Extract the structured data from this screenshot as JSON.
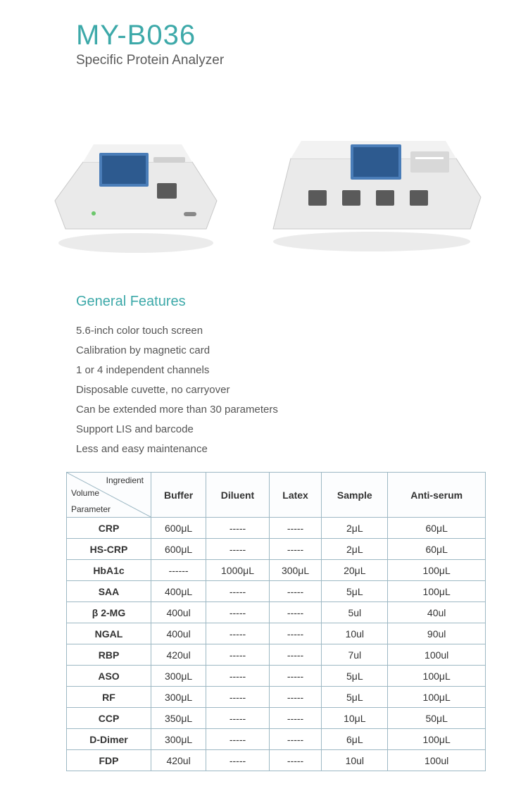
{
  "header": {
    "model": "MY-B036",
    "subtitle": "Specific Protein Analyzer"
  },
  "colors": {
    "accent": "#3da9a9",
    "text": "#4a4a4a",
    "border": "#9db8c4"
  },
  "section_title": "General Features",
  "features": [
    "5.6-inch color touch screen",
    "Calibration by magnetic card",
    "1 or 4 independent channels",
    "Disposable cuvette, no carryover",
    "Can be extended more than 30 parameters",
    "Support LIS and barcode",
    "Less and easy maintenance"
  ],
  "table": {
    "corner": {
      "ingredient": "Ingredient",
      "volume": "Volume",
      "parameter": "Parameter"
    },
    "columns": [
      "Buffer",
      "Diluent",
      "Latex",
      "Sample",
      "Anti-serum"
    ],
    "rows": [
      {
        "param": "CRP",
        "vals": [
          "600μL",
          "-----",
          "-----",
          "2μL",
          "60μL"
        ]
      },
      {
        "param": "HS-CRP",
        "vals": [
          "600μL",
          "-----",
          "-----",
          "2μL",
          "60μL"
        ]
      },
      {
        "param": "HbA1c",
        "vals": [
          "------",
          "1000μL",
          "300μL",
          "20μL",
          "100μL"
        ]
      },
      {
        "param": "SAA",
        "vals": [
          "400μL",
          "-----",
          "-----",
          "5μL",
          "100μL"
        ]
      },
      {
        "param": "β 2-MG",
        "vals": [
          "400ul",
          "-----",
          "-----",
          "5ul",
          "40ul"
        ]
      },
      {
        "param": "NGAL",
        "vals": [
          "400ul",
          "-----",
          "-----",
          "10ul",
          "90ul"
        ]
      },
      {
        "param": "RBP",
        "vals": [
          "420ul",
          "-----",
          "-----",
          "7ul",
          "100ul"
        ]
      },
      {
        "param": "ASO",
        "vals": [
          "300μL",
          "-----",
          "-----",
          "5μL",
          "100μL"
        ]
      },
      {
        "param": "RF",
        "vals": [
          "300μL",
          "-----",
          "-----",
          "5μL",
          "100μL"
        ]
      },
      {
        "param": "CCP",
        "vals": [
          "350μL",
          "-----",
          "-----",
          "10μL",
          "50μL"
        ]
      },
      {
        "param": "D-Dimer",
        "vals": [
          "300μL",
          "-----",
          "-----",
          "6μL",
          "100μL"
        ]
      },
      {
        "param": "FDP",
        "vals": [
          "420ul",
          "-----",
          "-----",
          "10ul",
          "100ul"
        ]
      }
    ]
  }
}
